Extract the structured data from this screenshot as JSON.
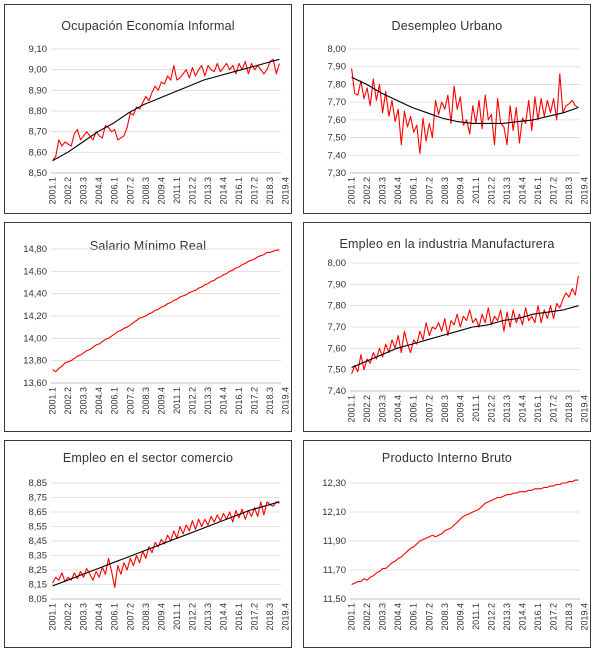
{
  "colors": {
    "series": "#ff0000",
    "trend": "#000000",
    "grid": "#d9d9d9",
    "axis": "#bfbfbf",
    "text": "#333333"
  },
  "x_tick_labels": [
    "2001.1",
    "2002.2",
    "2003.3",
    "2004.4",
    "2006.1",
    "2007.2",
    "2008.3",
    "2009.4",
    "2011.1",
    "2012.2",
    "2013.3",
    "2014.4",
    "2016.1",
    "2017.2",
    "2018.3",
    "2019.4"
  ],
  "chart_data": [
    {
      "title": "Ocupación Economía Informal",
      "type": "line",
      "ylim": [
        8.5,
        9.1
      ],
      "yticks": [
        "8,50",
        "8,60",
        "8,70",
        "8,80",
        "8,90",
        "9,00",
        "9,10"
      ],
      "trend": "polynomial",
      "series": [
        {
          "values": [
            8.56,
            8.58,
            8.66,
            8.63,
            8.65,
            8.64,
            8.63,
            8.69,
            8.71,
            8.66,
            8.68,
            8.7,
            8.68,
            8.66,
            8.7,
            8.68,
            8.67,
            8.73,
            8.72,
            8.7,
            8.71,
            8.66,
            8.67,
            8.68,
            8.72,
            8.79,
            8.78,
            8.82,
            8.81,
            8.84,
            8.87,
            8.85,
            8.89,
            8.92,
            8.9,
            8.94,
            8.93,
            8.97,
            8.95,
            9.02,
            8.95,
            8.96,
            8.98,
            9.0,
            8.96,
            9.01,
            8.97,
            9.0,
            9.02,
            8.97,
            9.02,
            9.0,
            8.99,
            9.03,
            8.99,
            9.01,
            9.03,
            9.0,
            9.02,
            8.98,
            9.03,
            9.0,
            9.04,
            8.98,
            9.03,
            9.0,
            9.02,
            9.0,
            8.98,
            9.0,
            9.04,
            9.05,
            8.98,
            9.03
          ]
        }
      ],
      "trend_values": [
        8.56,
        8.6,
        8.65,
        8.7,
        8.74,
        8.79,
        8.83,
        8.86,
        8.89,
        8.92,
        8.95,
        8.97,
        8.99,
        9.01,
        9.03,
        9.05
      ]
    },
    {
      "title": "Desempleo Urbano",
      "type": "line",
      "ylim": [
        7.3,
        8.0
      ],
      "yticks": [
        "7,30",
        "7,40",
        "7,50",
        "7,60",
        "7,70",
        "7,80",
        "7,90",
        "8,00"
      ],
      "trend": "polynomial",
      "series": [
        {
          "values": [
            7.89,
            7.75,
            7.74,
            7.82,
            7.72,
            7.78,
            7.68,
            7.83,
            7.71,
            7.8,
            7.64,
            7.76,
            7.62,
            7.71,
            7.59,
            7.66,
            7.46,
            7.65,
            7.56,
            7.62,
            7.53,
            7.57,
            7.41,
            7.61,
            7.48,
            7.58,
            7.5,
            7.71,
            7.63,
            7.7,
            7.66,
            7.74,
            7.58,
            7.79,
            7.66,
            7.73,
            7.57,
            7.6,
            7.52,
            7.68,
            7.58,
            7.71,
            7.55,
            7.74,
            7.6,
            7.63,
            7.46,
            7.72,
            7.58,
            7.56,
            7.46,
            7.68,
            7.54,
            7.67,
            7.47,
            7.61,
            7.58,
            7.71,
            7.54,
            7.73,
            7.6,
            7.72,
            7.62,
            7.71,
            7.64,
            7.72,
            7.6,
            7.86,
            7.64,
            7.68,
            7.69,
            7.71,
            7.68,
            7.67
          ]
        }
      ],
      "trend_values": [
        7.84,
        7.8,
        7.75,
        7.71,
        7.67,
        7.64,
        7.61,
        7.59,
        7.58,
        7.58,
        7.58,
        7.59,
        7.6,
        7.62,
        7.64,
        7.67
      ]
    },
    {
      "title": "Salario Mínimo Real",
      "type": "line",
      "ylim": [
        13.6,
        14.8
      ],
      "yticks": [
        "13,60",
        "13,80",
        "14,00",
        "14,20",
        "14,40",
        "14,60",
        "14,80"
      ],
      "trend": "none",
      "series": [
        {
          "values": [
            13.72,
            13.7,
            13.73,
            13.75,
            13.78,
            13.79,
            13.8,
            13.82,
            13.84,
            13.85,
            13.87,
            13.89,
            13.9,
            13.92,
            13.94,
            13.95,
            13.97,
            13.99,
            14.0,
            14.02,
            14.04,
            14.06,
            14.07,
            14.09,
            14.1,
            14.12,
            14.14,
            14.16,
            14.18,
            14.19,
            14.2,
            14.22,
            14.23,
            14.25,
            14.26,
            14.28,
            14.29,
            14.31,
            14.32,
            14.34,
            14.35,
            14.37,
            14.38,
            14.39,
            14.41,
            14.42,
            14.43,
            14.45,
            14.46,
            14.48,
            14.49,
            14.51,
            14.52,
            14.54,
            14.55,
            14.57,
            14.58,
            14.6,
            14.61,
            14.63,
            14.64,
            14.66,
            14.67,
            14.69,
            14.7,
            14.71,
            14.73,
            14.74,
            14.75,
            14.77,
            14.77,
            14.78,
            14.79,
            14.79
          ]
        }
      ]
    },
    {
      "title": "Empleo en la industria Manufacturera",
      "type": "line",
      "ylim": [
        7.4,
        8.0
      ],
      "yticks": [
        "7,40",
        "7,50",
        "7,60",
        "7,70",
        "7,80",
        "7,90",
        "8,00"
      ],
      "trend": "polynomial",
      "series": [
        {
          "values": [
            7.48,
            7.52,
            7.49,
            7.57,
            7.5,
            7.55,
            7.53,
            7.58,
            7.55,
            7.6,
            7.56,
            7.62,
            7.58,
            7.64,
            7.6,
            7.66,
            7.58,
            7.68,
            7.62,
            7.58,
            7.64,
            7.62,
            7.68,
            7.64,
            7.72,
            7.66,
            7.7,
            7.69,
            7.72,
            7.68,
            7.74,
            7.66,
            7.73,
            7.71,
            7.76,
            7.7,
            7.75,
            7.73,
            7.78,
            7.72,
            7.74,
            7.7,
            7.76,
            7.72,
            7.79,
            7.71,
            7.75,
            7.73,
            7.78,
            7.68,
            7.77,
            7.7,
            7.78,
            7.72,
            7.76,
            7.71,
            7.79,
            7.73,
            7.75,
            7.72,
            7.8,
            7.72,
            7.78,
            7.74,
            7.8,
            7.74,
            7.81,
            7.79,
            7.83,
            7.86,
            7.84,
            7.88,
            7.85,
            7.94
          ]
        }
      ],
      "trend_values": [
        7.51,
        7.54,
        7.57,
        7.6,
        7.62,
        7.64,
        7.66,
        7.68,
        7.7,
        7.71,
        7.73,
        7.74,
        7.76,
        7.77,
        7.78,
        7.8
      ]
    },
    {
      "title": "Empleo en el sector comercio",
      "type": "line",
      "ylim": [
        8.05,
        8.85
      ],
      "yticks": [
        "8,05",
        "8,15",
        "8,25",
        "8,35",
        "8,45",
        "8,55",
        "8,65",
        "8,75",
        "8,85"
      ],
      "trend": "linear",
      "series": [
        {
          "values": [
            8.16,
            8.2,
            8.18,
            8.23,
            8.17,
            8.2,
            8.18,
            8.23,
            8.19,
            8.24,
            8.2,
            8.26,
            8.22,
            8.18,
            8.24,
            8.2,
            8.27,
            8.22,
            8.33,
            8.24,
            8.13,
            8.28,
            8.22,
            8.3,
            8.25,
            8.33,
            8.28,
            8.35,
            8.3,
            8.38,
            8.33,
            8.41,
            8.37,
            8.44,
            8.41,
            8.46,
            8.43,
            8.49,
            8.45,
            8.52,
            8.47,
            8.55,
            8.5,
            8.56,
            8.52,
            8.59,
            8.53,
            8.6,
            8.55,
            8.6,
            8.56,
            8.62,
            8.58,
            8.63,
            8.59,
            8.64,
            8.6,
            8.65,
            8.58,
            8.66,
            8.61,
            8.67,
            8.6,
            8.66,
            8.62,
            8.68,
            8.62,
            8.72,
            8.63,
            8.72,
            8.7,
            8.69,
            8.72,
            8.71
          ]
        }
      ],
      "trend_values": [
        8.14,
        8.18,
        8.22,
        8.26,
        8.3,
        8.34,
        8.38,
        8.42,
        8.46,
        8.5,
        8.54,
        8.58,
        8.62,
        8.66,
        8.69,
        8.72
      ]
    },
    {
      "title": "Producto Interno Bruto",
      "type": "line",
      "ylim": [
        11.5,
        12.3
      ],
      "yticks": [
        "11,50",
        "11,70",
        "11,90",
        "12,10",
        "12,30"
      ],
      "trend": "none",
      "series": [
        {
          "values": [
            11.6,
            11.61,
            11.62,
            11.62,
            11.64,
            11.63,
            11.65,
            11.66,
            11.68,
            11.69,
            11.71,
            11.71,
            11.73,
            11.75,
            11.76,
            11.78,
            11.79,
            11.81,
            11.83,
            11.85,
            11.86,
            11.88,
            11.9,
            11.91,
            11.92,
            11.93,
            11.94,
            11.93,
            11.94,
            11.95,
            11.97,
            11.98,
            11.99,
            12.01,
            12.03,
            12.05,
            12.07,
            12.08,
            12.09,
            12.1,
            12.11,
            12.12,
            12.14,
            12.16,
            12.17,
            12.18,
            12.19,
            12.2,
            12.2,
            12.21,
            12.22,
            12.22,
            12.23,
            12.23,
            12.24,
            12.24,
            12.24,
            12.25,
            12.25,
            12.26,
            12.26,
            12.26,
            12.27,
            12.27,
            12.28,
            12.28,
            12.29,
            12.29,
            12.3,
            12.3,
            12.31,
            12.31,
            12.32,
            12.32
          ]
        }
      ]
    }
  ]
}
